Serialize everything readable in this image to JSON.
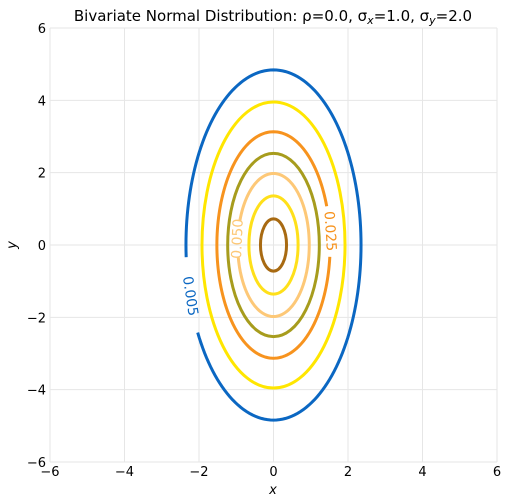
{
  "chart_data": {
    "type": "contour",
    "title": "Bivariate Normal Distribution: ρ=0.0, σ",
    "title_parts": {
      "prefix": "Bivariate Normal Distribution: ρ=0.0, σ",
      "sub_x": "x",
      "mid": "=1.0, σ",
      "sub_y": "y",
      "suffix": "=2.0"
    },
    "xlabel": "x",
    "ylabel": "y",
    "xlim": [
      -6,
      6
    ],
    "ylim": [
      -6,
      6
    ],
    "x_ticks": [
      -6,
      -4,
      -2,
      0,
      2,
      4,
      6
    ],
    "y_ticks": [
      -6,
      -4,
      -2,
      0,
      2,
      4,
      6
    ],
    "x_tick_labels": [
      "−6",
      "−4",
      "−2",
      "0",
      "2",
      "4",
      "6"
    ],
    "y_tick_labels": [
      "−6",
      "−4",
      "−2",
      "0",
      "2",
      "4",
      "6"
    ],
    "grid": true,
    "params": {
      "rho": 0.0,
      "sigma_x": 1.0,
      "sigma_y": 2.0
    },
    "levels": [
      {
        "value": 0.005,
        "label": "0.005",
        "semi_x": 2.35,
        "semi_y": 4.7,
        "color": "#0b67c2"
      },
      {
        "value": 0.01,
        "label": "",
        "semi_x": 1.92,
        "semi_y": 3.84,
        "color": "#ffe600"
      },
      {
        "value": 0.025,
        "label": "0.025",
        "semi_x": 1.52,
        "semi_y": 3.04,
        "color": "#f7931e"
      },
      {
        "value": 0.035,
        "label": "",
        "semi_x": 1.23,
        "semi_y": 2.46,
        "color": "#a79c1d"
      },
      {
        "value": 0.05,
        "label": "0.050",
        "semi_x": 0.96,
        "semi_y": 1.92,
        "color": "#fdc877"
      },
      {
        "value": 0.06,
        "label": "",
        "semi_x": 0.66,
        "semi_y": 1.32,
        "color": "#ffe01a"
      },
      {
        "value": 0.075,
        "label": "",
        "semi_x": 0.35,
        "semi_y": 0.7,
        "color": "#a86a12"
      }
    ]
  }
}
